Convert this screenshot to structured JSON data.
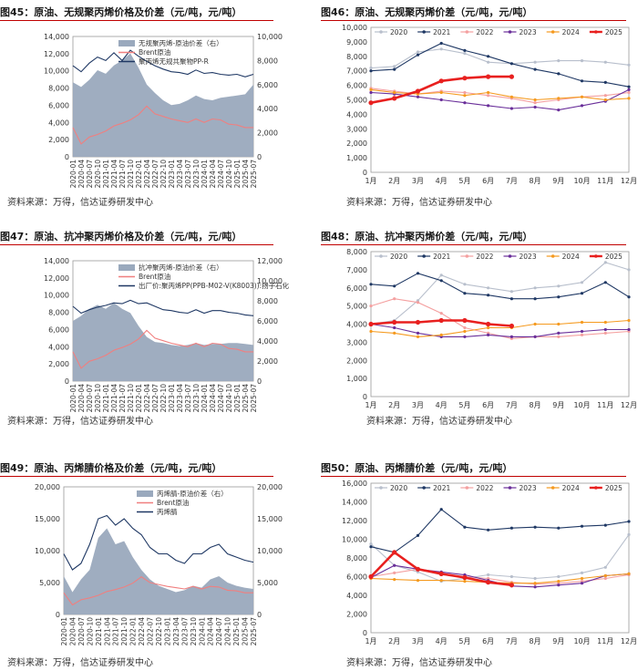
{
  "charts": [
    {
      "title": "图45：原油、无规聚丙烯价格及价差（元/吨，元/吨）",
      "source": "资料来源：万得，信达证券研发中心",
      "chart_data": {
        "type": "combo",
        "x_ticks": [
          "2020-01",
          "2020-04",
          "2020-07",
          "2020-10",
          "2021-01",
          "2021-04",
          "2021-07",
          "2021-10",
          "2022-01",
          "2022-04",
          "2022-07",
          "2022-10",
          "2023-01",
          "2023-04",
          "2023-07",
          "2023-10",
          "2024-01",
          "2024-04",
          "2024-07",
          "2024-10",
          "2025-01",
          "2025-04",
          "2025-07"
        ],
        "ylim_left": [
          0,
          14000
        ],
        "yticks_left": [
          "0",
          "2,000",
          "4,000",
          "6,000",
          "8,000",
          "10,000",
          "12,000",
          "14,000"
        ],
        "ylim_right": [
          0,
          10000
        ],
        "yticks_right": [
          "0",
          "2,000",
          "4,000",
          "6,000",
          "8,000",
          "10,000"
        ],
        "legend": [
          "无规聚丙烯-原油价差（右）",
          "Brent原油",
          "聚丙烯无规共聚物PP-R"
        ],
        "series": [
          {
            "name": "无规聚丙烯-原油价差（右）",
            "kind": "area",
            "axis": "right",
            "color": "#9aa9bd",
            "values": [
              6200,
              5800,
              6400,
              7200,
              6900,
              7600,
              8000,
              8600,
              7400,
              6000,
              5300,
              4700,
              4300,
              4400,
              4700,
              5100,
              4800,
              4700,
              4900,
              5000,
              5100,
              5200,
              6000
            ]
          },
          {
            "name": "Brent原油",
            "kind": "line",
            "axis": "left",
            "color": "#f07f7f",
            "values": [
              3400,
              1500,
              2300,
              2600,
              3000,
              3600,
              3900,
              4300,
              4900,
              5900,
              5000,
              4700,
              4400,
              4200,
              4000,
              4400,
              4000,
              4400,
              4300,
              3800,
              3700,
              3400,
              3400
            ]
          },
          {
            "name": "聚丙烯无规共聚物PP-R",
            "kind": "line",
            "axis": "left",
            "color": "#1f3864",
            "values": [
              10600,
              9900,
              10900,
              11600,
              11200,
              12100,
              11200,
              12400,
              11700,
              11100,
              10600,
              10200,
              9900,
              9800,
              9600,
              10100,
              9700,
              9800,
              9600,
              9500,
              9600,
              9300,
              9600
            ]
          }
        ]
      }
    },
    {
      "title": "图46：原油、无规聚丙烯价差（元/吨，元/吨）",
      "source": "资料来源：万得，信达证券研发中心",
      "chart_data": {
        "type": "line",
        "x_ticks": [
          "1月",
          "2月",
          "3月",
          "4月",
          "5月",
          "6月",
          "7月",
          "8月",
          "9月",
          "10月",
          "11月",
          "12月"
        ],
        "ylim": [
          0,
          10000
        ],
        "yticks": [
          "0",
          "1,000",
          "2,000",
          "3,000",
          "4,000",
          "5,000",
          "6,000",
          "7,000",
          "8,000",
          "9,000",
          "10,000"
        ],
        "series": [
          {
            "name": "2020",
            "color": "#b8bfcc",
            "values": [
              7200,
              7300,
              8300,
              8500,
              8200,
              7600,
              7500,
              7600,
              7700,
              7700,
              7600,
              7400
            ]
          },
          {
            "name": "2021",
            "color": "#1f3864",
            "values": [
              7000,
              7100,
              8100,
              8900,
              8400,
              8000,
              7500,
              7100,
              6800,
              6300,
              6200,
              5900
            ]
          },
          {
            "name": "2022",
            "color": "#f4a0a0",
            "values": [
              5800,
              5600,
              5400,
              5600,
              5500,
              5300,
              5100,
              4800,
              5000,
              5200,
              5300,
              5500
            ]
          },
          {
            "name": "2023",
            "color": "#6a2f9a",
            "values": [
              5500,
              5400,
              5200,
              5000,
              4800,
              4600,
              4400,
              4500,
              4300,
              4600,
              4900,
              5700
            ]
          },
          {
            "name": "2024",
            "color": "#f59a1f",
            "values": [
              5700,
              5500,
              5400,
              5500,
              5300,
              5500,
              5200,
              5000,
              5100,
              5200,
              5000,
              5100
            ]
          },
          {
            "name": "2025",
            "color": "#e8201f",
            "values": [
              4800,
              5100,
              5600,
              6300,
              6500,
              6600,
              6600,
              null,
              null,
              null,
              null,
              null
            ]
          }
        ]
      }
    },
    {
      "title": "图47：原油、抗冲聚丙烯价格及价差（元/吨，元/吨）",
      "source": "资料来源：万得，信达证券研发中心",
      "chart_data": {
        "type": "combo",
        "x_ticks": [
          "2020-01",
          "2020-04",
          "2020-07",
          "2020-10",
          "2021-01",
          "2021-04",
          "2021-07",
          "2021-10",
          "2022-01",
          "2022-04",
          "2022-07",
          "2022-10",
          "2023-01",
          "2023-04",
          "2023-07",
          "2023-10",
          "2024-01",
          "2024-04",
          "2024-07",
          "2024-10",
          "2025-01",
          "2025-04",
          "2025-07"
        ],
        "ylim_left": [
          0,
          14000
        ],
        "yticks_left": [
          "0",
          "2,000",
          "4,000",
          "6,000",
          "8,000",
          "10,000",
          "12,000",
          "14,000"
        ],
        "ylim_right": [
          0,
          12000
        ],
        "yticks_right": [
          "0",
          "2,000",
          "4,000",
          "6,000",
          "8,000",
          "10,000",
          "12,000"
        ],
        "legend": [
          "抗冲聚丙烯-原油价差（右）",
          "Brent原油",
          "出厂价:聚丙烯PP(PPB-M02-V(K8003)):扬子石化"
        ],
        "series": [
          {
            "name": "抗冲聚丙烯-原油价差（右）",
            "kind": "area",
            "axis": "right",
            "color": "#9aa9bd",
            "values": [
              6000,
              6500,
              7200,
              7600,
              7200,
              7800,
              7200,
              6800,
              5500,
              4400,
              3900,
              3800,
              3600,
              3500,
              3600,
              3800,
              3600,
              3700,
              3700,
              3800,
              3800,
              3700,
              3600
            ]
          },
          {
            "name": "Brent原油",
            "kind": "line",
            "axis": "left",
            "color": "#f07f7f",
            "values": [
              3400,
              1500,
              2300,
              2600,
              3000,
              3600,
              3900,
              4300,
              4900,
              5900,
              5000,
              4700,
              4400,
              4200,
              4000,
              4400,
              4000,
              4400,
              4300,
              3800,
              3700,
              3400,
              3400
            ]
          },
          {
            "name": "出厂价:聚丙烯PP(PPB-M02-V(K8003)):扬子石化",
            "kind": "line",
            "axis": "left",
            "color": "#1f3864",
            "values": [
              8700,
              7900,
              8300,
              8600,
              8800,
              9100,
              9000,
              9400,
              9000,
              9100,
              8700,
              8300,
              8200,
              8000,
              7900,
              8300,
              7900,
              8200,
              8200,
              8000,
              7900,
              7700,
              7600
            ]
          }
        ]
      }
    },
    {
      "title": "图48：原油、抗冲聚丙烯价差（元/吨，元/吨）",
      "source": "资料来源：万得，信达证券研发中心",
      "chart_data": {
        "type": "line",
        "x_ticks": [
          "1月",
          "2月",
          "3月",
          "4月",
          "5月",
          "6月",
          "7月",
          "8月",
          "9月",
          "10月",
          "11月",
          "12月"
        ],
        "ylim": [
          0,
          8000
        ],
        "yticks": [
          "0",
          "1,000",
          "2,000",
          "3,000",
          "4,000",
          "5,000",
          "6,000",
          "7,000",
          "8,000"
        ],
        "series": [
          {
            "name": "2020",
            "color": "#b8bfcc",
            "values": [
              4000,
              4200,
              5300,
              6700,
              6200,
              6000,
              5800,
              6000,
              6100,
              6300,
              7400,
              7000
            ]
          },
          {
            "name": "2021",
            "color": "#1f3864",
            "values": [
              6200,
              6100,
              6800,
              6400,
              5700,
              5600,
              5400,
              5400,
              5500,
              5700,
              6300,
              5500
            ]
          },
          {
            "name": "2022",
            "color": "#f4a0a0",
            "values": [
              5000,
              5400,
              5200,
              4600,
              3800,
              3500,
              3200,
              3300,
              3300,
              3400,
              3500,
              3600
            ]
          },
          {
            "name": "2023",
            "color": "#6a2f9a",
            "values": [
              4000,
              3800,
              3500,
              3300,
              3300,
              3400,
              3300,
              3300,
              3500,
              3600,
              3700,
              3700
            ]
          },
          {
            "name": "2024",
            "color": "#f59a1f",
            "values": [
              3600,
              3500,
              3300,
              3400,
              3600,
              3800,
              3800,
              4000,
              4000,
              4100,
              4100,
              4200
            ]
          },
          {
            "name": "2025",
            "color": "#e8201f",
            "values": [
              4000,
              4100,
              4100,
              4200,
              4200,
              4000,
              3900,
              null,
              null,
              null,
              null,
              null
            ]
          }
        ]
      }
    },
    {
      "title": "图49：原油、丙烯腈价格及价差（元/吨，元/吨）",
      "source": "资料来源：万得，信达证券研发中心",
      "chart_data": {
        "type": "combo",
        "x_ticks": [
          "2020-01",
          "2020-04",
          "2020-07",
          "2020-10",
          "2021-01",
          "2021-04",
          "2021-07",
          "2021-10",
          "2022-01",
          "2022-04",
          "2022-07",
          "2022-10",
          "2023-01",
          "2023-04",
          "2023-07",
          "2023-10",
          "2024-01",
          "2024-04",
          "2024-07",
          "2024-10",
          "2025-01",
          "2025-04",
          "2025-07"
        ],
        "ylim_left": [
          0,
          20000
        ],
        "yticks_left": [
          "0",
          "5,000",
          "10,000",
          "15,000",
          "20,000"
        ],
        "ylim_right": [
          0,
          20000
        ],
        "yticks_right": [
          "0",
          "5,000",
          "10,000",
          "15,000",
          "20,000"
        ],
        "legend": [
          "丙烯腈-原油价差（右）",
          "Brent原油",
          "丙烯腈"
        ],
        "series": [
          {
            "name": "丙烯腈-原油价差（右）",
            "kind": "area",
            "axis": "right",
            "color": "#9aa9bd",
            "values": [
              6000,
              3500,
              5500,
              7000,
              12000,
              13500,
              11000,
              11500,
              9000,
              7000,
              5500,
              4500,
              4000,
              3500,
              3800,
              4500,
              4200,
              5500,
              6000,
              5000,
              4500,
              4200,
              4000
            ]
          },
          {
            "name": "Brent原油",
            "kind": "line",
            "axis": "left",
            "color": "#f07f7f",
            "values": [
              3400,
              1500,
              2300,
              2600,
              3000,
              3600,
              3900,
              4300,
              4900,
              5900,
              5000,
              4700,
              4400,
              4200,
              4000,
              4400,
              4000,
              4400,
              4300,
              3800,
              3700,
              3400,
              3400
            ]
          },
          {
            "name": "丙烯腈",
            "kind": "line",
            "axis": "left",
            "color": "#1f3864",
            "values": [
              9500,
              7000,
              8000,
              11000,
              15000,
              15500,
              14000,
              15000,
              13500,
              12500,
              10500,
              9500,
              9500,
              8500,
              8000,
              9500,
              9500,
              10500,
              11000,
              9500,
              9000,
              8500,
              8200
            ]
          }
        ]
      }
    },
    {
      "title": "图50：原油、丙烯腈价差（元/吨，元/吨）",
      "source": "资料来源：万得，信达证券研发中心",
      "chart_data": {
        "type": "line",
        "x_ticks": [
          "1月",
          "2月",
          "3月",
          "4月",
          "5月",
          "6月",
          "7月",
          "8月",
          "9月",
          "10月",
          "11月",
          "12月"
        ],
        "ylim": [
          0,
          16000
        ],
        "yticks": [
          "0",
          "2,000",
          "4,000",
          "6,000",
          "8,000",
          "10,000",
          "12,000",
          "14,000",
          "16,000"
        ],
        "series": [
          {
            "name": "2020",
            "color": "#b8bfcc",
            "values": [
              9500,
              7200,
              6500,
              5500,
              5800,
              6200,
              6000,
              5800,
              6000,
              6400,
              7000,
              10500
            ]
          },
          {
            "name": "2021",
            "color": "#1f3864",
            "values": [
              9200,
              8600,
              10400,
              13200,
              11300,
              11000,
              11200,
              11300,
              11200,
              11400,
              11500,
              11900
            ]
          },
          {
            "name": "2022",
            "color": "#f4a0a0",
            "values": [
              6000,
              6400,
              6800,
              6200,
              6000,
              5800,
              5400,
              5200,
              5300,
              5500,
              5800,
              6200
            ]
          },
          {
            "name": "2023",
            "color": "#6a2f9a",
            "values": [
              5900,
              7200,
              6800,
              6500,
              6200,
              5600,
              5000,
              4900,
              5100,
              5300,
              6100,
              6300
            ]
          },
          {
            "name": "2024",
            "color": "#f59a1f",
            "values": [
              5800,
              5700,
              5600,
              5600,
              5500,
              5400,
              5300,
              5300,
              5500,
              5800,
              6100,
              6300
            ]
          },
          {
            "name": "2025",
            "color": "#e8201f",
            "values": [
              6000,
              8600,
              6800,
              6300,
              5900,
              5400,
              5100,
              null,
              null,
              null,
              null,
              null
            ]
          }
        ]
      }
    }
  ]
}
